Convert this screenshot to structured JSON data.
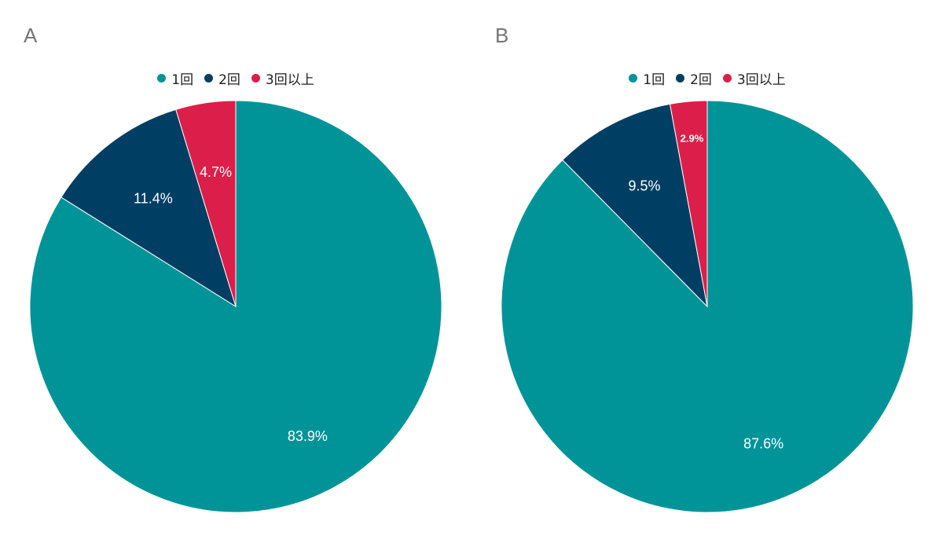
{
  "chart_data": [
    {
      "type": "pie",
      "panel_label": "A",
      "legend_position": "top",
      "categories": [
        "1回",
        "2回",
        "3回以上"
      ],
      "values": [
        83.9,
        11.4,
        4.7
      ],
      "data_labels": [
        "83.9%",
        "11.4%",
        "4.7%"
      ],
      "colors": [
        "#009499",
        "#003f63",
        "#dc1f4a"
      ],
      "start_angle_deg": 0,
      "direction": "clockwise"
    },
    {
      "type": "pie",
      "panel_label": "B",
      "legend_position": "top",
      "categories": [
        "1回",
        "2回",
        "3回以上"
      ],
      "values": [
        87.6,
        9.5,
        2.9
      ],
      "data_labels": [
        "87.6%",
        "9.5%",
        "2.9%"
      ],
      "colors": [
        "#009499",
        "#003f63",
        "#dc1f4a"
      ],
      "start_angle_deg": 0,
      "direction": "clockwise"
    }
  ]
}
